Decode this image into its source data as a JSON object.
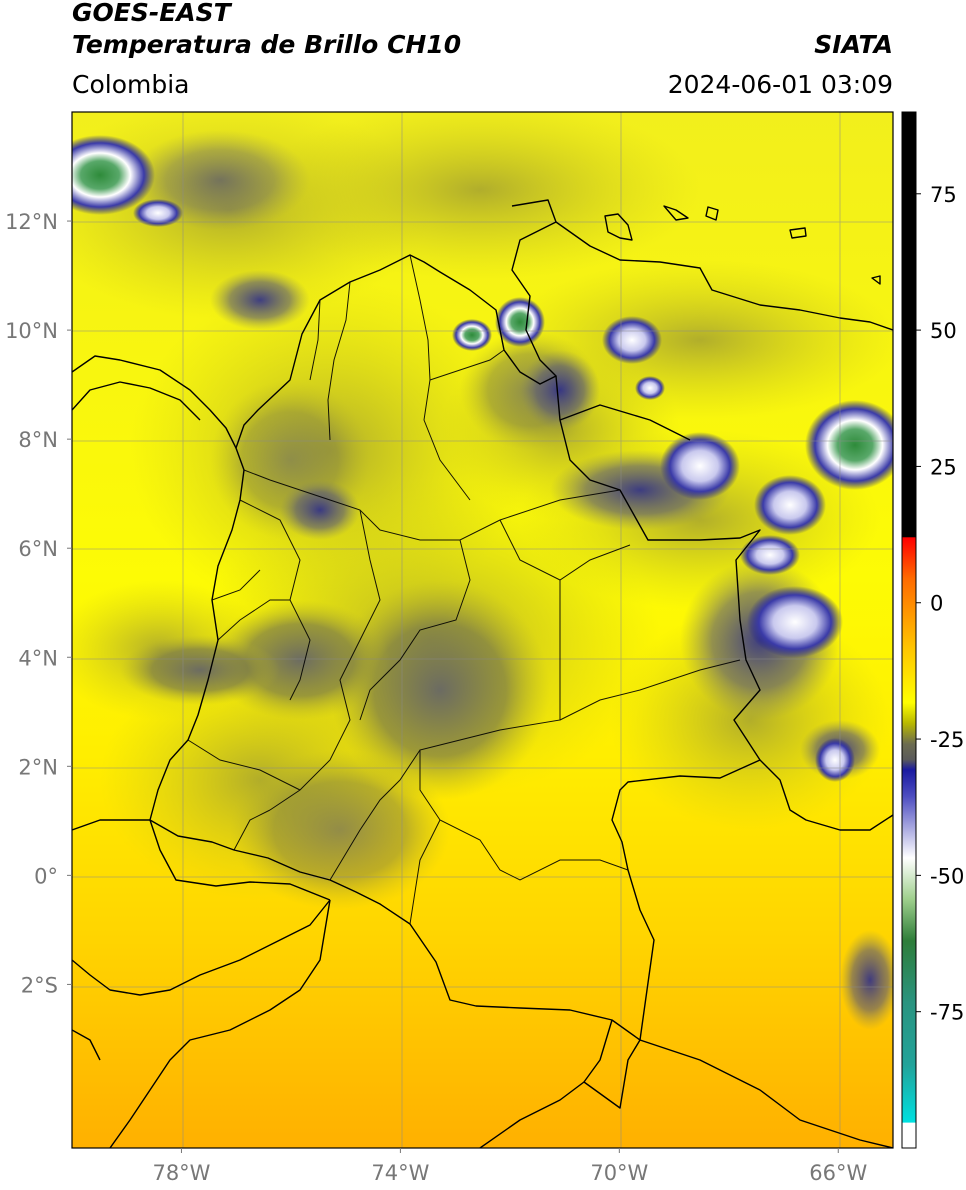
{
  "header": {
    "satellite": "GOES-EAST",
    "product": "Temperatura de Brillo CH10",
    "brand": "SIATA",
    "region": "Colombia",
    "datetime": "2024-06-01 03:09"
  },
  "map": {
    "lon_range": [
      -80,
      -65
    ],
    "lat_range": [
      -5,
      14
    ],
    "lon_ticks": [
      {
        "value": -78,
        "label": "78°W"
      },
      {
        "value": -74,
        "label": "74°W"
      },
      {
        "value": -70,
        "label": "70°W"
      },
      {
        "value": -66,
        "label": "66°W"
      }
    ],
    "lat_ticks": [
      {
        "value": 12,
        "label": "12°N"
      },
      {
        "value": 10,
        "label": "10°N"
      },
      {
        "value": 8,
        "label": "8°N"
      },
      {
        "value": 6,
        "label": "6°N"
      },
      {
        "value": 4,
        "label": "4°N"
      },
      {
        "value": 2,
        "label": "2°N"
      },
      {
        "value": 0,
        "label": "0°"
      },
      {
        "value": -2,
        "label": "2°S"
      }
    ],
    "grid": true
  },
  "colorbar": {
    "range": [
      -100,
      90
    ],
    "ticks": [
      {
        "value": 75,
        "label": "75"
      },
      {
        "value": 50,
        "label": "50"
      },
      {
        "value": 25,
        "label": "25"
      },
      {
        "value": 0,
        "label": "0"
      },
      {
        "value": -25,
        "label": "-25"
      },
      {
        "value": -50,
        "label": "-50"
      },
      {
        "value": -75,
        "label": "-75"
      }
    ]
  },
  "colors": {
    "warm": "#ffaa00",
    "mid": "#ffff00",
    "cloud_low": "#b5b22a",
    "cloud_grey": "#5f5f5f",
    "deep_blue": "#1c1c8a",
    "white": "#ffffff",
    "green": "#2e8b3a",
    "teal": "#22a39a"
  }
}
